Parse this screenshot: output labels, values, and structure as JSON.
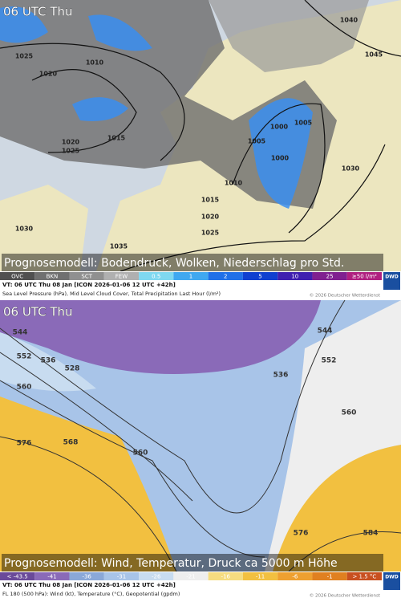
{
  "panels": [
    {
      "time_label": "06 UTC Thu",
      "caption": "Prognosemodell: Bodendruck, Wolken, Niederschlag pro Std.",
      "legend": [
        "OVC",
        "BKN",
        "SCT",
        "FEW",
        "0.5",
        "1",
        "2",
        "5",
        "10",
        "25",
        "≥50 l/m²"
      ],
      "logo": "DWD",
      "valid_time": "VT: 06 UTC Thu  08 Jan [ICON 2026-01-06 12 UTC +42h]",
      "description": "Sea Level Pressure (hPa), Mid Level Cloud Cover, Total Precipitation Last Hour (l/m²)",
      "copyright": "© 2026 Deutscher Wetterdienst",
      "contour_labels": [
        "1040",
        "1025",
        "1020",
        "1010",
        "1015",
        "1020",
        "1025",
        "1005",
        "1000",
        "1005",
        "1000",
        "1010",
        "1015",
        "1020",
        "1025",
        "1030",
        "1035",
        "1030",
        "1045"
      ]
    },
    {
      "time_label": "06 UTC Thu",
      "caption": "Prognosemodell: Wind, Temperatur, Druck ca 5000 m Höhe",
      "legend": [
        "< -43.5",
        "-41",
        "-36",
        "-31",
        "-26",
        "-21",
        "-16",
        "-11",
        "-6",
        "-1",
        "> 1.5 °C"
      ],
      "logo": "DWD",
      "valid_time": "VT: 06 UTC Thu  08 Jan [ICON 2026-01-06 12 UTC +42h]",
      "description": "FL 180 (500 hPa): Wind (kt), Temperature (°C), Geopotential (gpdm)",
      "copyright": "© 2026 Deutscher Wetterdienst",
      "contour_labels": [
        "544",
        "552",
        "536",
        "528",
        "560",
        "576",
        "568",
        "560",
        "536",
        "544",
        "552",
        "560",
        "576",
        "584"
      ]
    }
  ]
}
